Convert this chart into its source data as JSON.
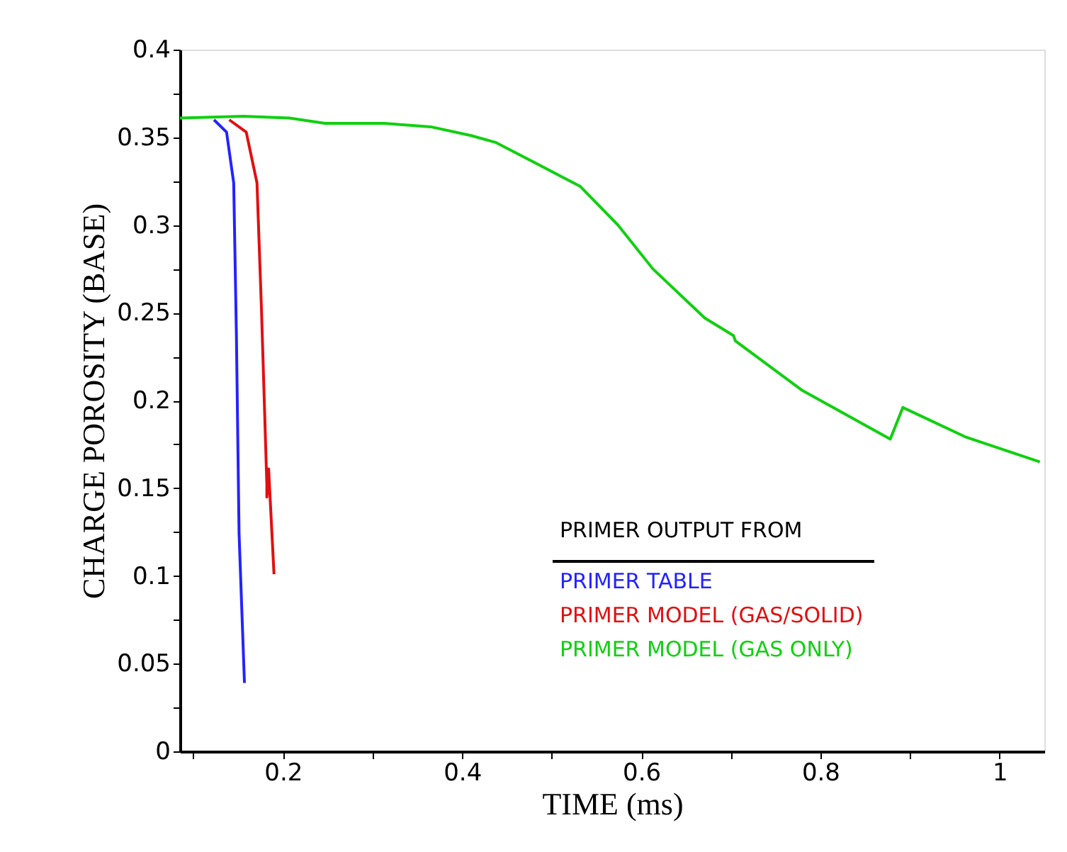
{
  "chart_data": {
    "type": "line",
    "xlabel": "TIME (ms)",
    "ylabel": "CHARGE POROSITY (BASE)",
    "legend_title": "PRIMER OUTPUT FROM",
    "legend": "bottom right",
    "xlim": [
      0.085,
      1.05
    ],
    "ylim": [
      0,
      0.4
    ],
    "xticks": [
      {
        "value": 0.1,
        "label": null
      },
      0.2,
      {
        "value": 0.3,
        "label": null
      },
      0.4,
      {
        "value": 0.5,
        "label": null
      },
      0.6,
      {
        "value": 0.7,
        "label": null
      },
      0.8,
      {
        "value": 0.9,
        "label": null
      },
      1
    ],
    "yticks": [
      0,
      {
        "value": 0.025,
        "label": null
      },
      0.05,
      {
        "value": 0.075,
        "label": null
      },
      0.1,
      {
        "value": 0.125,
        "label": null
      },
      0.15,
      {
        "value": 0.175,
        "label": null
      },
      0.2,
      {
        "value": 0.225,
        "label": null
      },
      0.25,
      {
        "value": 0.275,
        "label": null
      },
      0.3,
      {
        "value": 0.325,
        "label": null
      },
      0.35,
      {
        "value": 0.375,
        "label": null
      },
      0.4
    ],
    "grid": false,
    "line_style": "solid",
    "marker": "none",
    "series": [
      {
        "name": "PRIMER TABLE",
        "color": "#2323ff",
        "x": [
          0.123,
          0.137,
          0.145,
          0.148,
          0.151,
          0.157
        ],
        "values": [
          0.36,
          0.353,
          0.324,
          0.238,
          0.124,
          0.039
        ]
      },
      {
        "name": "PRIMER MODEL (GAS/SOLID)",
        "color": "#e01010",
        "x": [
          0.14,
          0.159,
          0.171,
          0.176,
          0.182,
          0.182,
          0.184,
          0.19
        ],
        "values": [
          0.36,
          0.353,
          0.324,
          0.252,
          0.152,
          0.145,
          0.161,
          0.101
        ]
      },
      {
        "name": "PRIMER MODEL (GAS ONLY)",
        "color": "#10d010",
        "x": [
          0.085,
          0.156,
          0.207,
          0.247,
          0.313,
          0.365,
          0.41,
          0.438,
          0.532,
          0.574,
          0.613,
          0.671,
          0.703,
          0.705,
          0.779,
          0.878,
          0.892,
          0.963,
          1.045
        ],
        "values": [
          0.361,
          0.362,
          0.361,
          0.358,
          0.358,
          0.356,
          0.351,
          0.347,
          0.322,
          0.3,
          0.275,
          0.247,
          0.237,
          0.234,
          0.206,
          0.178,
          0.196,
          0.179,
          0.165
        ]
      }
    ]
  }
}
